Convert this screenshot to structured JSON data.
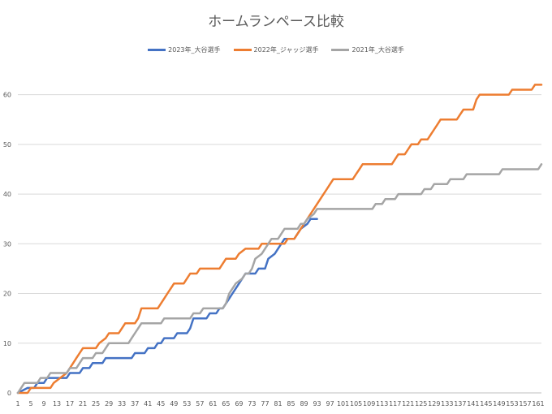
{
  "chart_data": {
    "type": "line",
    "title": "ホームランペース比較",
    "xlabel": "",
    "ylabel": "",
    "ylim": [
      0,
      65
    ],
    "xlim": [
      1,
      162
    ],
    "yticks": [
      0,
      10,
      20,
      30,
      40,
      50,
      60
    ],
    "xticks": [
      1,
      5,
      9,
      13,
      17,
      21,
      25,
      29,
      33,
      37,
      41,
      45,
      49,
      53,
      57,
      61,
      65,
      69,
      73,
      77,
      81,
      85,
      89,
      93,
      97,
      101,
      105,
      109,
      113,
      117,
      121,
      125,
      129,
      133,
      137,
      141,
      145,
      149,
      153,
      157,
      161
    ],
    "grid": "horizontal",
    "legend_position": "top",
    "series": [
      {
        "name": "2023年_大谷選手",
        "color": "#4472C4",
        "points": [
          [
            1,
            0
          ],
          [
            4,
            1
          ],
          [
            6,
            1
          ],
          [
            7,
            2
          ],
          [
            9,
            2
          ],
          [
            10,
            3
          ],
          [
            16,
            3
          ],
          [
            17,
            4
          ],
          [
            20,
            4
          ],
          [
            21,
            5
          ],
          [
            23,
            5
          ],
          [
            24,
            6
          ],
          [
            27,
            6
          ],
          [
            28,
            7
          ],
          [
            36,
            7
          ],
          [
            37,
            8
          ],
          [
            40,
            8
          ],
          [
            41,
            9
          ],
          [
            43,
            9
          ],
          [
            44,
            10
          ],
          [
            45,
            10
          ],
          [
            46,
            11
          ],
          [
            49,
            11
          ],
          [
            50,
            12
          ],
          [
            53,
            12
          ],
          [
            54,
            13
          ],
          [
            55,
            15
          ],
          [
            59,
            15
          ],
          [
            60,
            16
          ],
          [
            62,
            16
          ],
          [
            63,
            17
          ],
          [
            64,
            17
          ],
          [
            65,
            18
          ],
          [
            66,
            19
          ],
          [
            67,
            20
          ],
          [
            68,
            21
          ],
          [
            69,
            22
          ],
          [
            70,
            23
          ],
          [
            71,
            24
          ],
          [
            74,
            24
          ],
          [
            75,
            25
          ],
          [
            77,
            25
          ],
          [
            78,
            27
          ],
          [
            80,
            28
          ],
          [
            81,
            29
          ],
          [
            82,
            30
          ],
          [
            83,
            31
          ],
          [
            86,
            31
          ],
          [
            87,
            32
          ],
          [
            88,
            33
          ],
          [
            90,
            34
          ],
          [
            91,
            35
          ],
          [
            93,
            35
          ]
        ]
      },
      {
        "name": "2022年_ジャッジ選手",
        "color": "#ED7D31",
        "points": [
          [
            1,
            0
          ],
          [
            4,
            0
          ],
          [
            5,
            1
          ],
          [
            11,
            1
          ],
          [
            12,
            2
          ],
          [
            14,
            3
          ],
          [
            16,
            4
          ],
          [
            17,
            5
          ],
          [
            18,
            6
          ],
          [
            19,
            7
          ],
          [
            20,
            8
          ],
          [
            21,
            9
          ],
          [
            25,
            9
          ],
          [
            26,
            10
          ],
          [
            28,
            11
          ],
          [
            29,
            12
          ],
          [
            32,
            12
          ],
          [
            33,
            13
          ],
          [
            34,
            14
          ],
          [
            37,
            14
          ],
          [
            38,
            15
          ],
          [
            39,
            17
          ],
          [
            44,
            17
          ],
          [
            45,
            18
          ],
          [
            46,
            19
          ],
          [
            47,
            20
          ],
          [
            48,
            21
          ],
          [
            49,
            22
          ],
          [
            52,
            22
          ],
          [
            53,
            23
          ],
          [
            54,
            24
          ],
          [
            56,
            24
          ],
          [
            57,
            25
          ],
          [
            63,
            25
          ],
          [
            64,
            26
          ],
          [
            65,
            27
          ],
          [
            68,
            27
          ],
          [
            69,
            28
          ],
          [
            71,
            29
          ],
          [
            75,
            29
          ],
          [
            76,
            30
          ],
          [
            83,
            30
          ],
          [
            84,
            31
          ],
          [
            86,
            31
          ],
          [
            87,
            32
          ],
          [
            88,
            33
          ],
          [
            89,
            34
          ],
          [
            90,
            35
          ],
          [
            91,
            36
          ],
          [
            92,
            37
          ],
          [
            93,
            38
          ],
          [
            94,
            39
          ],
          [
            95,
            40
          ],
          [
            96,
            41
          ],
          [
            97,
            42
          ],
          [
            98,
            43
          ],
          [
            104,
            43
          ],
          [
            105,
            44
          ],
          [
            106,
            45
          ],
          [
            107,
            46
          ],
          [
            116,
            46
          ],
          [
            117,
            47
          ],
          [
            118,
            48
          ],
          [
            120,
            48
          ],
          [
            121,
            49
          ],
          [
            122,
            50
          ],
          [
            124,
            50
          ],
          [
            125,
            51
          ],
          [
            127,
            51
          ],
          [
            128,
            52
          ],
          [
            129,
            53
          ],
          [
            130,
            54
          ],
          [
            131,
            55
          ],
          [
            136,
            55
          ],
          [
            137,
            56
          ],
          [
            138,
            57
          ],
          [
            141,
            57
          ],
          [
            142,
            59
          ],
          [
            143,
            60
          ],
          [
            152,
            60
          ],
          [
            153,
            61
          ],
          [
            159,
            61
          ],
          [
            160,
            62
          ],
          [
            162,
            62
          ]
        ]
      },
      {
        "name": "2021年_大谷選手",
        "color": "#A5A5A5",
        "points": [
          [
            1,
            0
          ],
          [
            2,
            1
          ],
          [
            3,
            2
          ],
          [
            7,
            2
          ],
          [
            8,
            3
          ],
          [
            10,
            3
          ],
          [
            11,
            4
          ],
          [
            16,
            4
          ],
          [
            17,
            5
          ],
          [
            19,
            5
          ],
          [
            20,
            6
          ],
          [
            21,
            7
          ],
          [
            24,
            7
          ],
          [
            25,
            8
          ],
          [
            27,
            8
          ],
          [
            28,
            9
          ],
          [
            29,
            10
          ],
          [
            35,
            10
          ],
          [
            36,
            11
          ],
          [
            37,
            12
          ],
          [
            38,
            13
          ],
          [
            39,
            14
          ],
          [
            45,
            14
          ],
          [
            46,
            15
          ],
          [
            54,
            15
          ],
          [
            55,
            16
          ],
          [
            57,
            16
          ],
          [
            58,
            17
          ],
          [
            64,
            17
          ],
          [
            65,
            18
          ],
          [
            66,
            20
          ],
          [
            67,
            21
          ],
          [
            68,
            22
          ],
          [
            70,
            23
          ],
          [
            71,
            24
          ],
          [
            72,
            24
          ],
          [
            73,
            25
          ],
          [
            74,
            27
          ],
          [
            76,
            28
          ],
          [
            77,
            29
          ],
          [
            78,
            30
          ],
          [
            79,
            31
          ],
          [
            81,
            31
          ],
          [
            82,
            32
          ],
          [
            83,
            33
          ],
          [
            87,
            33
          ],
          [
            88,
            34
          ],
          [
            89,
            34
          ],
          [
            90,
            35
          ],
          [
            92,
            36
          ],
          [
            93,
            37
          ],
          [
            110,
            37
          ],
          [
            111,
            38
          ],
          [
            113,
            38
          ],
          [
            114,
            39
          ],
          [
            117,
            39
          ],
          [
            118,
            40
          ],
          [
            125,
            40
          ],
          [
            126,
            41
          ],
          [
            128,
            41
          ],
          [
            129,
            42
          ],
          [
            133,
            42
          ],
          [
            134,
            43
          ],
          [
            138,
            43
          ],
          [
            139,
            44
          ],
          [
            149,
            44
          ],
          [
            150,
            45
          ],
          [
            161,
            45
          ],
          [
            162,
            46
          ]
        ]
      }
    ]
  }
}
